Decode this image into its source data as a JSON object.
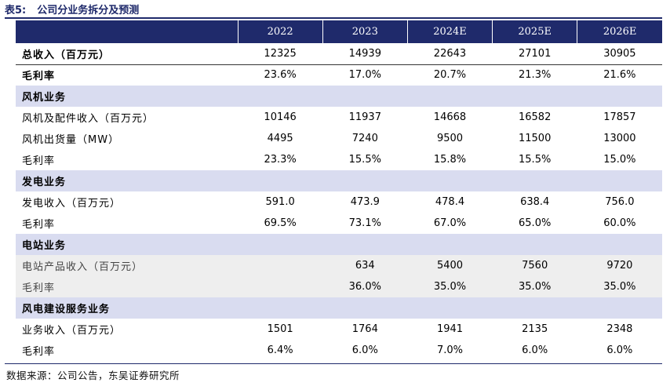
{
  "title": {
    "number": "表5:",
    "text": "公司分业务拆分及预测"
  },
  "table": {
    "columns": [
      "2022",
      "2023",
      "2024E",
      "2025E",
      "2026E"
    ],
    "rows": [
      {
        "kind": "data",
        "style": "bold underline",
        "label": "总收入（百万元）",
        "values": [
          "12325",
          "14939",
          "22643",
          "27101",
          "30905"
        ]
      },
      {
        "kind": "data",
        "style": "bold",
        "label": "毛利率",
        "values": [
          "23.6%",
          "17.0%",
          "20.7%",
          "21.3%",
          "21.6%"
        ]
      },
      {
        "kind": "section",
        "label": "风机业务"
      },
      {
        "kind": "data",
        "style": "",
        "label": "风机及配件收入（百万元）",
        "values": [
          "10146",
          "11937",
          "14668",
          "16582",
          "17857"
        ]
      },
      {
        "kind": "data",
        "style": "",
        "label": "风机出货量（MW）",
        "values": [
          "4495",
          "7240",
          "9500",
          "11500",
          "13000"
        ]
      },
      {
        "kind": "data",
        "style": "",
        "label": "毛利率",
        "values": [
          "23.3%",
          "15.5%",
          "15.8%",
          "15.5%",
          "15.0%"
        ]
      },
      {
        "kind": "section",
        "label": "发电业务"
      },
      {
        "kind": "data",
        "style": "",
        "label": "发电收入（百万元）",
        "values": [
          "591.0",
          "473.9",
          "478.4",
          "638.4",
          "756.0"
        ]
      },
      {
        "kind": "data",
        "style": "",
        "label": "毛利率",
        "values": [
          "69.5%",
          "73.1%",
          "67.0%",
          "65.0%",
          "60.0%"
        ]
      },
      {
        "kind": "section",
        "label": "电站业务"
      },
      {
        "kind": "data",
        "style": "shade",
        "label": "电站产品收入（百万元）",
        "values": [
          "",
          "634",
          "5400",
          "7560",
          "9720"
        ]
      },
      {
        "kind": "data",
        "style": "shade",
        "label": "毛利率",
        "values": [
          "",
          "36.0%",
          "35.0%",
          "35.0%",
          "35.0%"
        ]
      },
      {
        "kind": "section",
        "label": "风电建设服务业务"
      },
      {
        "kind": "data",
        "style": "",
        "label": "业务收入（百万元）",
        "values": [
          "1501",
          "1764",
          "1941",
          "2135",
          "2348"
        ]
      },
      {
        "kind": "data",
        "style": "",
        "label": "毛利率",
        "values": [
          "6.4%",
          "6.0%",
          "7.0%",
          "6.0%",
          "6.0%"
        ]
      }
    ]
  },
  "source": "数据来源：公司公告，东吴证券研究所"
}
